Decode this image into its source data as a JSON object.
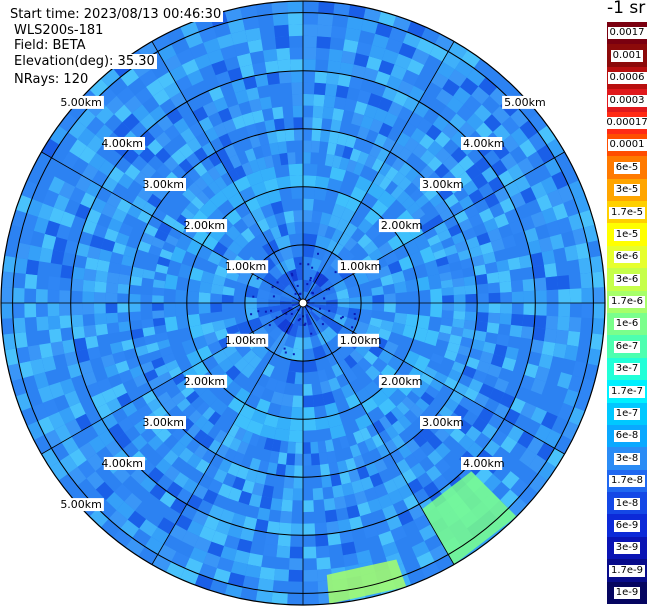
{
  "header": {
    "start_time": "Start time: 2023/08/13 00:46:30",
    "instrument": "WLS200s-181",
    "field": "Field: BETA",
    "elevation": "Elevation(deg): 35.30",
    "nrays": "NRays: 120"
  },
  "chart_data": {
    "type": "heatmap",
    "projection": "polar-ppi",
    "field": "BETA",
    "unit_label": "-1 sr",
    "max_range_km": 5.2,
    "range_rings_km": [
      1,
      2,
      3,
      4,
      5
    ],
    "azimuth_spokes_deg": [
      0,
      30,
      60,
      90,
      120,
      150,
      180,
      210,
      240,
      270,
      300,
      330
    ],
    "range_labels": {
      "upper_left": [
        "5.00km",
        "4.00km",
        "3.00km",
        "2.00km",
        "1.00km"
      ],
      "upper_right": [
        "5.00km",
        "4.00km",
        "3.00km",
        "2.00km",
        "1.00km"
      ],
      "lower_left": [
        "5.00km",
        "4.00km",
        "3.00km",
        "2.00km",
        "1.00km"
      ],
      "lower_right": [
        "4.00km",
        "3.00km",
        "2.00km",
        "1.00km"
      ]
    },
    "dominant_value": "1.7e-8",
    "high_patches": [
      {
        "azimuth_deg": [
          135,
          150
        ],
        "range_km": [
          4.1,
          5.2
        ],
        "value": "1e-6"
      },
      {
        "azimuth_deg": [
          160,
          175
        ],
        "range_km": [
          4.7,
          5.2
        ],
        "value": "1.7e-6"
      }
    ],
    "colorbar": [
      {
        "label": "0.0017",
        "color": "#7a0010"
      },
      {
        "label": "0.001",
        "color": "#8c0a0a"
      },
      {
        "label": "0.0006",
        "color": "#b80f0f"
      },
      {
        "label": "0.0003",
        "color": "#e0191c"
      },
      {
        "label": "0.00017",
        "color": "#ff2a14"
      },
      {
        "label": "0.0001",
        "color": "#ff4d00"
      },
      {
        "label": "6e-5",
        "color": "#ff7a00"
      },
      {
        "label": "3e-5",
        "color": "#ffa500"
      },
      {
        "label": "1.7e-5",
        "color": "#ffd000"
      },
      {
        "label": "1e-5",
        "color": "#ffff00"
      },
      {
        "label": "6e-6",
        "color": "#e6ff2e"
      },
      {
        "label": "3e-6",
        "color": "#c6ff4a"
      },
      {
        "label": "1.7e-6",
        "color": "#a6ff6a"
      },
      {
        "label": "1e-6",
        "color": "#7aff8c"
      },
      {
        "label": "6e-7",
        "color": "#4dffb0"
      },
      {
        "label": "3e-7",
        "color": "#22ffd8"
      },
      {
        "label": "1.7e-7",
        "color": "#00f0ff"
      },
      {
        "label": "1e-7",
        "color": "#00c8ff"
      },
      {
        "label": "6e-8",
        "color": "#0aa8ff"
      },
      {
        "label": "3e-8",
        "color": "#2b8cf5"
      },
      {
        "label": "1.7e-8",
        "color": "#2068f0"
      },
      {
        "label": "1e-8",
        "color": "#1448e6"
      },
      {
        "label": "6e-9",
        "color": "#0c2ad8"
      },
      {
        "label": "3e-9",
        "color": "#0a14b4"
      },
      {
        "label": "1.7e-9",
        "color": "#080c8a"
      },
      {
        "label": "1e-9",
        "color": "#050560"
      }
    ]
  }
}
